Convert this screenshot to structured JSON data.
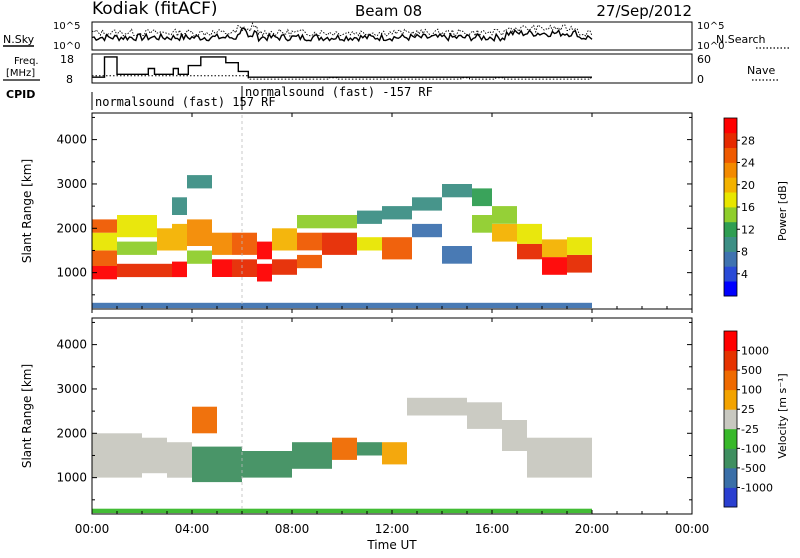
{
  "header": {
    "station": "Kodiak (fitACF)",
    "beam": "Beam 08",
    "date": "27/Sep/2012"
  },
  "status_panels": {
    "nsky_label": "N.Sky",
    "nsearch_label": "N.Search",
    "freq_label_line1": "Freq.",
    "freq_label_line2": "[MHz]",
    "nave_label": "Nave",
    "cpid_label": "CPID",
    "noise_ticks_left": [
      "10^5",
      "10^0"
    ],
    "noise_ticks_right": [
      "10^5",
      "10^0"
    ],
    "freq_ticks": [
      "18",
      "8"
    ],
    "nave_ticks": [
      "60",
      "0"
    ],
    "cpid_segments": [
      {
        "text": "normalsound (fast) 157 RF",
        "start": 0.0,
        "end": 6.0
      },
      {
        "text": "normalsound (fast) -157 RF",
        "start": 6.0,
        "end": 20.0
      }
    ],
    "freq_steps": [
      [
        0.0,
        10
      ],
      [
        0.5,
        17
      ],
      [
        1.0,
        11
      ],
      [
        2.2,
        11
      ],
      [
        2.25,
        13
      ],
      [
        2.5,
        11
      ],
      [
        3.2,
        11
      ],
      [
        3.25,
        13
      ],
      [
        3.45,
        11
      ],
      [
        3.8,
        11
      ],
      [
        3.85,
        14
      ],
      [
        4.3,
        14
      ],
      [
        4.35,
        17
      ],
      [
        5.3,
        17
      ],
      [
        5.35,
        15
      ],
      [
        5.8,
        15
      ],
      [
        5.85,
        12
      ],
      [
        6.2,
        12
      ],
      [
        6.25,
        10
      ],
      [
        20.0,
        10
      ]
    ],
    "nave_steps": [
      [
        0.0,
        15
      ],
      [
        6.2,
        15
      ],
      [
        6.25,
        8
      ],
      [
        9.4,
        8
      ],
      [
        9.45,
        11
      ],
      [
        9.8,
        8
      ],
      [
        14.7,
        8
      ],
      [
        14.75,
        11
      ],
      [
        15.1,
        8
      ],
      [
        16.1,
        8
      ],
      [
        16.15,
        11
      ],
      [
        16.5,
        8
      ],
      [
        19.9,
        8
      ],
      [
        19.95,
        12
      ],
      [
        20.0,
        12
      ]
    ]
  },
  "chart_data": [
    {
      "type": "heatmap",
      "title": "Power",
      "xlabel": "",
      "ylabel": "Slant Range [km]",
      "xlim": [
        0,
        24
      ],
      "ylim": [
        180,
        4600
      ],
      "yticks": [
        1000,
        2000,
        3000,
        4000
      ],
      "colorbar": {
        "label": "Power [dB]",
        "ticks": [
          "4",
          "8",
          "12",
          "16",
          "20",
          "24",
          "28"
        ],
        "colors": [
          "#0000ff",
          "#2a4bd7",
          "#3f73b0",
          "#3d8f85",
          "#2f9e52",
          "#8fce2c",
          "#e8e600",
          "#f3b200",
          "#f38a00",
          "#ef5a00",
          "#e62a00",
          "#ff0000"
        ]
      },
      "bands": [
        {
          "t0": 0.0,
          "t1": 1.0,
          "r0": 850,
          "r1": 1150,
          "level": 11
        },
        {
          "t0": 0.0,
          "t1": 1.0,
          "r0": 1150,
          "r1": 1500,
          "level": 9
        },
        {
          "t0": 0.0,
          "t1": 1.0,
          "r0": 1500,
          "r1": 1900,
          "level": 6
        },
        {
          "t0": 0.0,
          "t1": 1.0,
          "r0": 1900,
          "r1": 2200,
          "level": 9
        },
        {
          "t0": 1.0,
          "t1": 2.6,
          "r0": 900,
          "r1": 1200,
          "level": 10
        },
        {
          "t0": 1.0,
          "t1": 2.6,
          "r0": 1400,
          "r1": 1700,
          "level": 5
        },
        {
          "t0": 1.0,
          "t1": 2.6,
          "r0": 1800,
          "r1": 2300,
          "level": 6
        },
        {
          "t0": 2.6,
          "t1": 3.2,
          "r0": 900,
          "r1": 1200,
          "level": 10
        },
        {
          "t0": 2.6,
          "t1": 3.2,
          "r0": 1500,
          "r1": 2000,
          "level": 7
        },
        {
          "t0": 3.2,
          "t1": 3.8,
          "r0": 900,
          "r1": 1250,
          "level": 11
        },
        {
          "t0": 3.2,
          "t1": 3.8,
          "r0": 1500,
          "r1": 2100,
          "level": 7
        },
        {
          "t0": 3.2,
          "t1": 3.8,
          "r0": 2300,
          "r1": 2700,
          "level": 3
        },
        {
          "t0": 3.8,
          "t1": 4.8,
          "r0": 1200,
          "r1": 1500,
          "level": 5
        },
        {
          "t0": 3.8,
          "t1": 4.8,
          "r0": 1600,
          "r1": 2200,
          "level": 8
        },
        {
          "t0": 3.8,
          "t1": 4.8,
          "r0": 2900,
          "r1": 3200,
          "level": 3
        },
        {
          "t0": 4.8,
          "t1": 5.6,
          "r0": 900,
          "r1": 1300,
          "level": 11
        },
        {
          "t0": 4.8,
          "t1": 5.6,
          "r0": 1400,
          "r1": 1900,
          "level": 8
        },
        {
          "t0": 5.6,
          "t1": 6.6,
          "r0": 900,
          "r1": 1300,
          "level": 10
        },
        {
          "t0": 5.6,
          "t1": 6.6,
          "r0": 1400,
          "r1": 1900,
          "level": 9
        },
        {
          "t0": 6.6,
          "t1": 7.2,
          "r0": 800,
          "r1": 1200,
          "level": 11
        },
        {
          "t0": 6.6,
          "t1": 7.2,
          "r0": 1300,
          "r1": 1700,
          "level": 11
        },
        {
          "t0": 7.2,
          "t1": 8.2,
          "r0": 950,
          "r1": 1300,
          "level": 10
        },
        {
          "t0": 7.2,
          "t1": 8.2,
          "r0": 1500,
          "r1": 2000,
          "level": 7
        },
        {
          "t0": 8.2,
          "t1": 9.2,
          "r0": 1100,
          "r1": 1400,
          "level": 9
        },
        {
          "t0": 8.2,
          "t1": 9.2,
          "r0": 1500,
          "r1": 1900,
          "level": 9
        },
        {
          "t0": 8.2,
          "t1": 9.2,
          "r0": 2000,
          "r1": 2300,
          "level": 5
        },
        {
          "t0": 9.2,
          "t1": 10.6,
          "r0": 1400,
          "r1": 1900,
          "level": 10
        },
        {
          "t0": 9.2,
          "t1": 10.6,
          "r0": 2000,
          "r1": 2300,
          "level": 5
        },
        {
          "t0": 10.6,
          "t1": 11.6,
          "r0": 1500,
          "r1": 1800,
          "level": 6
        },
        {
          "t0": 10.6,
          "t1": 11.6,
          "r0": 2100,
          "r1": 2400,
          "level": 3
        },
        {
          "t0": 11.6,
          "t1": 12.8,
          "r0": 1300,
          "r1": 1800,
          "level": 9
        },
        {
          "t0": 11.6,
          "t1": 12.8,
          "r0": 2200,
          "r1": 2500,
          "level": 3
        },
        {
          "t0": 12.8,
          "t1": 14.0,
          "r0": 1800,
          "r1": 2100,
          "level": 2
        },
        {
          "t0": 12.8,
          "t1": 14.0,
          "r0": 2400,
          "r1": 2700,
          "level": 3
        },
        {
          "t0": 14.0,
          "t1": 15.2,
          "r0": 1200,
          "r1": 1600,
          "level": 2
        },
        {
          "t0": 14.0,
          "t1": 15.2,
          "r0": 2700,
          "r1": 3000,
          "level": 3
        },
        {
          "t0": 15.2,
          "t1": 16.0,
          "r0": 1900,
          "r1": 2300,
          "level": 5
        },
        {
          "t0": 15.2,
          "t1": 16.0,
          "r0": 2500,
          "r1": 2900,
          "level": 4
        },
        {
          "t0": 16.0,
          "t1": 17.0,
          "r0": 1700,
          "r1": 2100,
          "level": 7
        },
        {
          "t0": 16.0,
          "t1": 17.0,
          "r0": 2100,
          "r1": 2500,
          "level": 5
        },
        {
          "t0": 17.0,
          "t1": 18.0,
          "r0": 1300,
          "r1": 1650,
          "level": 10
        },
        {
          "t0": 17.0,
          "t1": 18.0,
          "r0": 1650,
          "r1": 2100,
          "level": 6
        },
        {
          "t0": 18.0,
          "t1": 19.0,
          "r0": 950,
          "r1": 1350,
          "level": 11
        },
        {
          "t0": 18.0,
          "t1": 19.0,
          "r0": 1350,
          "r1": 1750,
          "level": 7
        },
        {
          "t0": 19.0,
          "t1": 20.0,
          "r0": 1000,
          "r1": 1400,
          "level": 10
        },
        {
          "t0": 19.0,
          "t1": 20.0,
          "r0": 1400,
          "r1": 1800,
          "level": 6
        },
        {
          "t0": 0.0,
          "t1": 20.0,
          "r0": 200,
          "r1": 320,
          "level": 2
        }
      ]
    },
    {
      "type": "heatmap",
      "title": "Velocity",
      "xlabel": "Time UT",
      "ylabel": "Slant Range [km]",
      "xlim": [
        0,
        24
      ],
      "ylim": [
        180,
        4600
      ],
      "yticks": [
        1000,
        2000,
        3000,
        4000
      ],
      "xticks": [
        "00:00",
        "04:00",
        "08:00",
        "12:00",
        "16:00",
        "20:00",
        "00:00"
      ],
      "colorbar": {
        "label": "Velocity [m s⁻¹]",
        "ticks": [
          "1000",
          "500",
          "100",
          "25",
          "-25",
          "-100",
          "-500",
          "-1000"
        ],
        "colors": [
          "#2a3fd0",
          "#3a6fa8",
          "#3f8f60",
          "#38b82a",
          "#c8c8c0",
          "#f3a300",
          "#ef6a00",
          "#e63300",
          "#ff0000"
        ]
      },
      "bands": [
        {
          "t0": 0.0,
          "t1": 2.0,
          "r0": 1000,
          "r1": 2000,
          "level": 4
        },
        {
          "t0": 2.0,
          "t1": 3.0,
          "r0": 1100,
          "r1": 1900,
          "level": 4
        },
        {
          "t0": 3.0,
          "t1": 4.0,
          "r0": 1000,
          "r1": 1800,
          "level": 4
        },
        {
          "t0": 4.0,
          "t1": 6.0,
          "r0": 900,
          "r1": 1700,
          "level": 2
        },
        {
          "t0": 6.0,
          "t1": 8.0,
          "r0": 1000,
          "r1": 1600,
          "level": 2
        },
        {
          "t0": 8.0,
          "t1": 9.6,
          "r0": 1200,
          "r1": 1800,
          "level": 2
        },
        {
          "t0": 9.6,
          "t1": 10.6,
          "r0": 1400,
          "r1": 1900,
          "level": 6
        },
        {
          "t0": 10.6,
          "t1": 11.6,
          "r0": 1500,
          "r1": 1800,
          "level": 2
        },
        {
          "t0": 11.6,
          "t1": 12.6,
          "r0": 1300,
          "r1": 1800,
          "level": 5
        },
        {
          "t0": 12.6,
          "t1": 15.0,
          "r0": 2400,
          "r1": 2800,
          "level": 4
        },
        {
          "t0": 15.0,
          "t1": 16.4,
          "r0": 2100,
          "r1": 2700,
          "level": 4
        },
        {
          "t0": 16.4,
          "t1": 17.4,
          "r0": 1600,
          "r1": 2300,
          "level": 4
        },
        {
          "t0": 17.4,
          "t1": 20.0,
          "r0": 1000,
          "r1": 1900,
          "level": 4
        },
        {
          "t0": 4.0,
          "t1": 5.0,
          "r0": 2000,
          "r1": 2600,
          "level": 6
        },
        {
          "t0": 0.0,
          "t1": 20.0,
          "r0": 200,
          "r1": 300,
          "level": 3
        }
      ]
    }
  ]
}
